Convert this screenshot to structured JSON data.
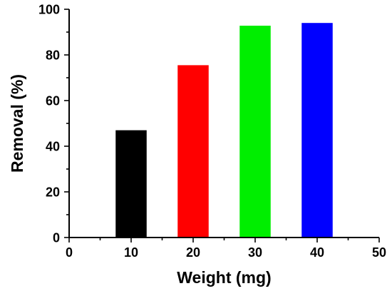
{
  "chart_data": {
    "type": "bar",
    "xlabel": "Weight (mg)",
    "ylabel": "Removal (%)",
    "xlim": [
      0,
      50
    ],
    "ylim": [
      0,
      100
    ],
    "x_ticks": [
      0,
      10,
      20,
      30,
      40,
      50
    ],
    "y_ticks": [
      0,
      20,
      40,
      60,
      80,
      100
    ],
    "x": [
      10,
      20,
      30,
      40
    ],
    "values": [
      47,
      75.5,
      92.8,
      94
    ],
    "bar_width": 5,
    "colors": [
      "#000000",
      "#ff0000",
      "#00ee00",
      "#0000ff"
    ],
    "grid": false,
    "legend": "none"
  }
}
